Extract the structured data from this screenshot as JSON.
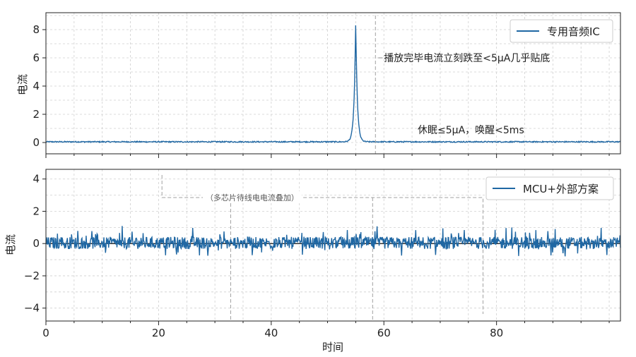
{
  "chart_data": [
    {
      "type": "line",
      "ylabel": "电流",
      "xlabel": "",
      "xlim": [
        0,
        102
      ],
      "ylim": [
        -0.8,
        9.2
      ],
      "xticks": [
        0,
        20,
        40,
        60,
        80
      ],
      "yticks": [
        0,
        2,
        4,
        6,
        8
      ],
      "grid": true,
      "legend_position": "top-right",
      "series": [
        {
          "name": "专用音频IC",
          "color": "#1f67a3",
          "baseline": 0.05,
          "noise": 0.04,
          "peak": {
            "x": 55,
            "y": 8.6
          }
        }
      ],
      "annotations": [
        {
          "text": "播放完毕电流立刻跌至<5μA几乎贴底",
          "x": 60,
          "y": 6.0,
          "line_x": 58.5
        },
        {
          "text": "休眠≤5μA，唤醒<5ms",
          "x": 66,
          "y": 0.9
        }
      ]
    },
    {
      "type": "line",
      "ylabel": "电流",
      "xlabel": "时间",
      "xlim": [
        0,
        102
      ],
      "ylim": [
        -4.8,
        4.6
      ],
      "xticks": [
        0,
        20,
        40,
        60,
        80
      ],
      "yticks": [
        4,
        2,
        0,
        -2,
        -4
      ],
      "ytick_labels": [
        "4",
        "2",
        "0",
        "−2",
        "−4"
      ],
      "grid": true,
      "legend_position": "top-right",
      "series": [
        {
          "name": "MCU+外部方案",
          "color": "#1f67a3",
          "baseline": 0.0,
          "noise_range": [
            -0.8,
            1.1
          ]
        }
      ],
      "annotations": [
        {
          "text": "（多芯片待线电电流叠加）",
          "x": 36,
          "y": 2.85,
          "bracket_x": [
            20.6,
            77.6
          ],
          "drop_x": [
            20.6,
            32.8,
            58.0,
            77.6
          ]
        }
      ]
    }
  ]
}
